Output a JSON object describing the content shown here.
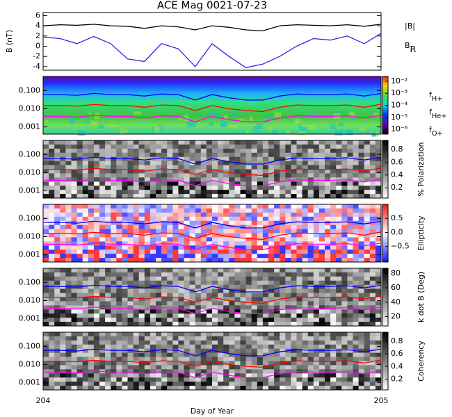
{
  "chart_data": [
    {
      "type": "line",
      "title": "ACE Mag 0021-07-23",
      "ylabel": "B (nT)",
      "x": [
        204,
        204.05,
        204.1,
        204.15,
        204.2,
        204.25,
        204.3,
        204.35,
        204.4,
        204.45,
        204.5,
        204.55,
        204.6,
        204.65,
        204.7,
        204.75,
        204.8,
        204.85,
        204.9,
        204.95,
        205
      ],
      "xlim": [
        204,
        205
      ],
      "ylim": [
        -4.7,
        6.6
      ],
      "yticks": [
        -4,
        -2,
        0,
        2,
        4,
        6
      ],
      "series": [
        {
          "name": "|B|",
          "color": "#000000",
          "values": [
            4,
            4.2,
            4.1,
            4.3,
            4.0,
            3.9,
            3.5,
            4.0,
            3.8,
            3.2,
            4.0,
            3.7,
            3.2,
            3.0,
            4.0,
            4.2,
            4.1,
            4.0,
            4.2,
            3.9,
            4.3
          ]
        },
        {
          "name": "BR",
          "color": "#2828e6",
          "values": [
            1.8,
            1.5,
            0.5,
            1.9,
            0.5,
            -2.5,
            -3.0,
            0.5,
            -0.5,
            -4.0,
            0.5,
            -2.0,
            -4.2,
            -3.5,
            -2.0,
            0.0,
            1.5,
            1.2,
            2.0,
            0.5,
            2.5
          ]
        }
      ]
    },
    {
      "type": "line",
      "ylog": true,
      "x": [
        204,
        204.05,
        204.1,
        204.15,
        204.2,
        204.25,
        204.3,
        204.35,
        204.4,
        204.45,
        204.5,
        204.55,
        204.6,
        204.65,
        204.7,
        204.75,
        204.8,
        204.85,
        204.9,
        204.95,
        205
      ],
      "xlim": [
        204,
        205
      ],
      "ylim": [
        0.0004,
        0.6
      ],
      "yticks": [
        {
          "value": 0.1,
          "label": "0.100"
        },
        {
          "value": 0.01,
          "label": "0.010"
        },
        0.001
      ],
      "colorbar": {
        "style": "spectral",
        "lim": [
          -6.4,
          -1.6
        ],
        "ticks": [
          {
            "value": -2,
            "label": "10⁻²"
          },
          {
            "value": -3,
            "label": "10⁻³"
          },
          {
            "value": -4,
            "label": "10⁻⁴"
          },
          {
            "value": -5,
            "label": "10⁻⁵"
          },
          {
            "value": -6,
            "label": "10⁻⁶"
          }
        ]
      },
      "series": [
        {
          "name": "fH+",
          "color": "#0000ff",
          "values": [
            0.06,
            0.06,
            0.055,
            0.07,
            0.06,
            0.06,
            0.05,
            0.065,
            0.06,
            0.03,
            0.06,
            0.04,
            0.03,
            0.03,
            0.05,
            0.065,
            0.06,
            0.06,
            0.065,
            0.05,
            0.07
          ]
        },
        {
          "name": "fHe+",
          "color": "#ff0000",
          "values": [
            0.015,
            0.015,
            0.014,
            0.017,
            0.015,
            0.015,
            0.012,
            0.016,
            0.015,
            0.008,
            0.015,
            0.01,
            0.008,
            0.007,
            0.012,
            0.016,
            0.015,
            0.015,
            0.016,
            0.012,
            0.018
          ]
        },
        {
          "name": "fO+",
          "color": "#ff00ff",
          "values": [
            0.0038,
            0.0038,
            0.0034,
            0.0044,
            0.0038,
            0.0038,
            0.0031,
            0.0041,
            0.0038,
            0.0019,
            0.0038,
            0.0025,
            0.0019,
            0.0019,
            0.0031,
            0.0041,
            0.0038,
            0.0038,
            0.0041,
            0.0031,
            0.0044
          ]
        }
      ]
    },
    {
      "type": "line",
      "ylog": true,
      "xlim": [
        204,
        205
      ],
      "ylim": [
        0.0004,
        0.6
      ],
      "yticks": [
        {
          "value": 0.1,
          "label": "0.100"
        },
        {
          "value": 0.01,
          "label": "0.010"
        },
        0.001
      ],
      "colorbar": {
        "style": "gray",
        "label": "% Polarization",
        "lim": [
          0.04,
          0.94
        ],
        "ticks": [
          0.2,
          0.4,
          0.6,
          0.8
        ]
      }
    },
    {
      "type": "line",
      "ylog": true,
      "xlim": [
        204,
        205
      ],
      "ylim": [
        0.0004,
        0.6
      ],
      "yticks": [
        {
          "value": 0.1,
          "label": "0.100"
        },
        {
          "value": 0.01,
          "label": "0.010"
        },
        0.001
      ],
      "colorbar": {
        "style": "diverging",
        "label": "Ellipticity",
        "lim": [
          -1.05,
          1.0
        ],
        "ticks": [
          0.5,
          {
            "value": 0,
            "label": "0.0"
          },
          {
            "value": -0.5,
            "label": "−0.5"
          }
        ]
      }
    },
    {
      "type": "line",
      "ylog": true,
      "xlim": [
        204,
        205
      ],
      "ylim": [
        0.0004,
        0.6
      ],
      "yticks": [
        {
          "value": 0.1,
          "label": "0.100"
        },
        {
          "value": 0.01,
          "label": "0.010"
        },
        0.001
      ],
      "colorbar": {
        "style": "gray",
        "label": "k dot B (Deg)",
        "lim": [
          7,
          87
        ],
        "ticks": [
          20,
          40,
          60,
          80
        ]
      }
    },
    {
      "type": "line",
      "ylog": true,
      "xlim": [
        204,
        205
      ],
      "ylim": [
        0.0004,
        0.6
      ],
      "yticks": [
        {
          "value": 0.1,
          "label": "0.100"
        },
        {
          "value": 0.01,
          "label": "0.010"
        },
        0.001
      ],
      "xticks": [
        204,
        205
      ],
      "xlabel": "Day of Year",
      "colorbar": {
        "style": "gray",
        "label": "Coherency",
        "lim": [
          0.03,
          0.94
        ],
        "ticks": [
          0.2,
          0.4,
          0.6,
          0.8
        ]
      }
    }
  ]
}
